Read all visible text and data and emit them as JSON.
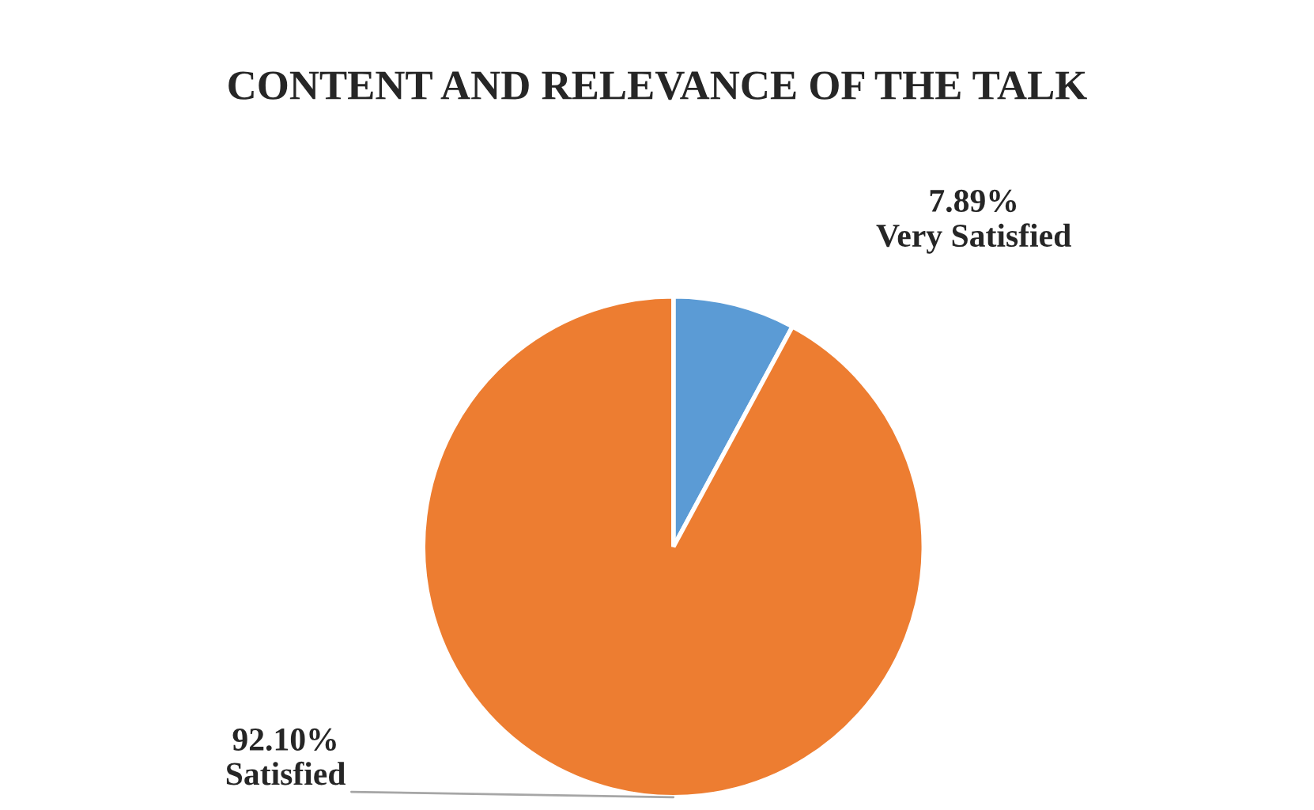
{
  "chart_data": {
    "type": "pie",
    "title": "CONTENT AND RELEVANCE OF THE TALK",
    "categories": [
      "Very Satisfied",
      "Satisfied"
    ],
    "values": [
      7.89,
      92.1
    ],
    "value_labels": [
      "7.89%",
      "92.10%"
    ],
    "colors": [
      "#5b9bd5",
      "#ed7d31"
    ],
    "legend": false
  }
}
